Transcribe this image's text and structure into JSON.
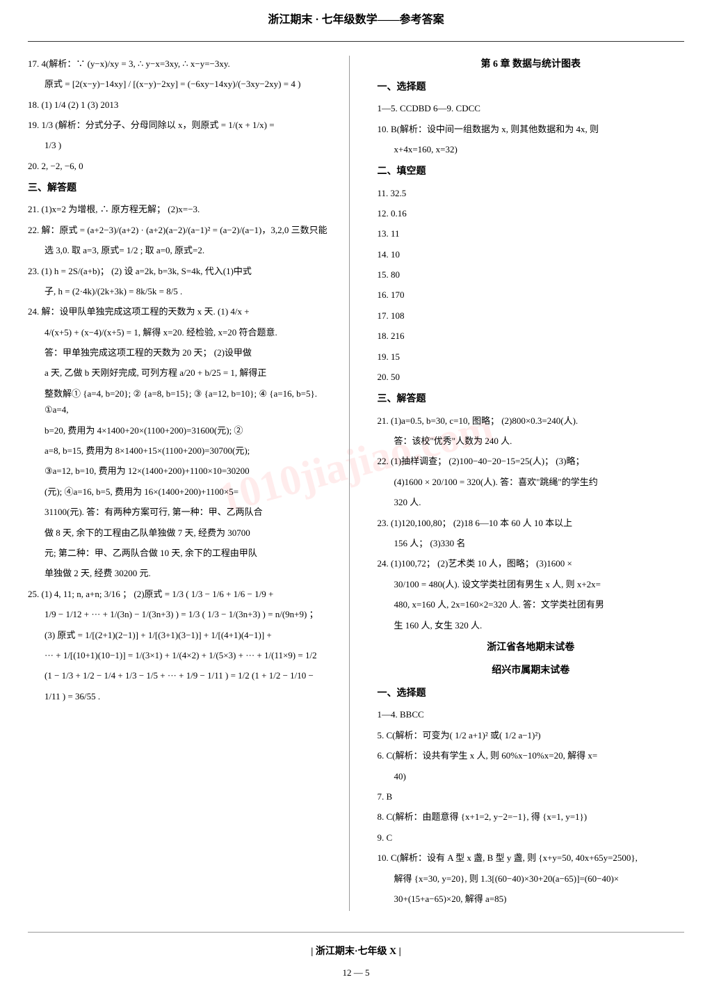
{
  "header": {
    "title": "浙江期末 · 七年级数学——参考答案"
  },
  "watermark": "1010jiajiao.com",
  "left_column": [
    {
      "type": "line",
      "text": "17.  4(解析：∵ (y−x)/xy = 3, ∴ y−x=3xy, ∴ x−y=−3xy."
    },
    {
      "type": "line",
      "indent": 1,
      "text": "原式 = [2(x−y)−14xy] / [(x−y)−2xy] = (−6xy−14xy)/(−3xy−2xy) = 4 )"
    },
    {
      "type": "line",
      "text": "18.  (1) 1/4    (2) 1    (3) 2013"
    },
    {
      "type": "line",
      "text": "19.  1/3 (解析：分式分子、分母同除以 x，则原式 = 1/(x + 1/x) ="
    },
    {
      "type": "line",
      "indent": 1,
      "text": "1/3 )"
    },
    {
      "type": "line",
      "text": "20.  2, −2, −6, 0"
    },
    {
      "type": "heading",
      "text": "三、解答题"
    },
    {
      "type": "line",
      "text": "21.  (1)x=2 为增根, ∴ 原方程无解；   (2)x=−3."
    },
    {
      "type": "line",
      "text": "22.  解：原式 = (a+2−3)/(a+2) · (a+2)(a−2)/(a−1)² = (a−2)/(a−1)，3,2,0 三数只能"
    },
    {
      "type": "line",
      "indent": 1,
      "text": "选 3,0.  取 a=3, 原式= 1/2 ; 取 a=0, 原式=2."
    },
    {
      "type": "line",
      "text": "23.  (1) h = 2S/(a+b)；  (2) 设 a=2k, b=3k, S=4k, 代入(1)中式"
    },
    {
      "type": "line",
      "indent": 1,
      "text": "子, h = (2·4k)/(2k+3k) = 8k/5k = 8/5 ."
    },
    {
      "type": "line",
      "text": "24.  解：设甲队单独完成这项工程的天数为 x 天.  (1) 4/x +"
    },
    {
      "type": "line",
      "indent": 1,
      "text": "4/(x+5) + (x−4)/(x+5) = 1, 解得 x=20. 经检验, x=20 符合题意."
    },
    {
      "type": "line",
      "indent": 1,
      "text": "答：甲单独完成这项工程的天数为 20 天；  (2)设甲做"
    },
    {
      "type": "line",
      "indent": 1,
      "text": "a 天, 乙做 b 天刚好完成, 可列方程 a/20 + b/25 = 1, 解得正"
    },
    {
      "type": "line",
      "indent": 1,
      "text": "整数解① {a=4, b=20}; ② {a=8, b=15}; ③ {a=12, b=10}; ④ {a=16, b=5}.  ①a=4,"
    },
    {
      "type": "line",
      "indent": 1,
      "text": "b=20, 费用为 4×1400+20×(1100+200)=31600(元); ②"
    },
    {
      "type": "line",
      "indent": 1,
      "text": "a=8, b=15, 费用为 8×1400+15×(1100+200)=30700(元);"
    },
    {
      "type": "line",
      "indent": 1,
      "text": "③a=12, b=10, 费用为 12×(1400+200)+1100×10=30200"
    },
    {
      "type": "line",
      "indent": 1,
      "text": "(元); ④a=16, b=5, 费用为 16×(1400+200)+1100×5="
    },
    {
      "type": "line",
      "indent": 1,
      "text": "31100(元). 答：有两种方案可行, 第一种：甲、乙两队合"
    },
    {
      "type": "line",
      "indent": 1,
      "text": "做 8 天, 余下的工程由乙队单独做 7 天, 经费为 30700"
    },
    {
      "type": "line",
      "indent": 1,
      "text": "元; 第二种：甲、乙两队合做 10 天, 余下的工程由甲队"
    },
    {
      "type": "line",
      "indent": 1,
      "text": "单独做 2 天, 经费 30200 元."
    },
    {
      "type": "line",
      "text": "25.  (1) 4, 11; n, a+n; 3/16 ；  (2)原式 = 1/3 ( 1/3 − 1/6 + 1/6 − 1/9 +"
    },
    {
      "type": "line",
      "indent": 1,
      "text": "1/9 − 1/12 + ··· + 1/(3n) − 1/(3n+3) ) = 1/3 ( 1/3 − 1/(3n+3) ) = n/(9n+9) ；"
    },
    {
      "type": "line",
      "indent": 1,
      "text": "(3) 原式 = 1/[(2+1)(2−1)] + 1/[(3+1)(3−1)] + 1/[(4+1)(4−1)] +"
    },
    {
      "type": "line",
      "indent": 1,
      "text": "··· + 1/[(10+1)(10−1)] = 1/(3×1) + 1/(4×2) + 1/(5×3) + ··· + 1/(11×9) = 1/2"
    },
    {
      "type": "line",
      "indent": 1,
      "text": "(1 − 1/3 + 1/2 − 1/4 + 1/3 − 1/5 + ··· + 1/9 − 1/11 ) = 1/2 (1 + 1/2 − 1/10 −"
    },
    {
      "type": "line",
      "indent": 1,
      "text": "1/11 ) = 36/55 ."
    }
  ],
  "right_column": [
    {
      "type": "chapter",
      "text": "第 6 章   数据与统计图表"
    },
    {
      "type": "heading",
      "text": "一、选择题"
    },
    {
      "type": "line",
      "text": "1—5.  CCDBD    6—9.  CDCC"
    },
    {
      "type": "line",
      "text": "10.  B(解析：设中间一组数据为 x, 则其他数据和为 4x, 则"
    },
    {
      "type": "line",
      "indent": 1,
      "text": "x+4x=160, x=32)"
    },
    {
      "type": "heading",
      "text": "二、填空题"
    },
    {
      "type": "line",
      "text": "11.  32.5"
    },
    {
      "type": "line",
      "text": "12.  0.16"
    },
    {
      "type": "line",
      "text": "13.  11"
    },
    {
      "type": "line",
      "text": "14.  10"
    },
    {
      "type": "line",
      "text": "15.  80"
    },
    {
      "type": "line",
      "text": "16.  170"
    },
    {
      "type": "line",
      "text": "17.  108"
    },
    {
      "type": "line",
      "text": "18.  216"
    },
    {
      "type": "line",
      "text": "19.  15"
    },
    {
      "type": "line",
      "text": "20.  50"
    },
    {
      "type": "heading",
      "text": "三、解答题"
    },
    {
      "type": "line",
      "text": "21.  (1)a=0.5, b=30, c=10, 图略；  (2)800×0.3=240(人)."
    },
    {
      "type": "line",
      "indent": 1,
      "text": "答：该校\"优秀\"人数为 240 人."
    },
    {
      "type": "line",
      "text": "22.  (1)抽样调查；  (2)100−40−20−15=25(人)；  (3)略；"
    },
    {
      "type": "line",
      "indent": 1,
      "text": "(4)1600 × 20/100 = 320(人).  答：喜欢\"跳绳\"的学生约"
    },
    {
      "type": "line",
      "indent": 1,
      "text": "320 人."
    },
    {
      "type": "line",
      "text": "23.  (1)120,100,80；  (2)18  6—10 本 60 人   10 本以上"
    },
    {
      "type": "line",
      "indent": 1,
      "text": "156 人；  (3)330 名"
    },
    {
      "type": "line",
      "text": "24.  (1)100,72；  (2)艺术类 10 人，图略；  (3)1600 ×"
    },
    {
      "type": "line",
      "indent": 1,
      "text": "30/100 = 480(人).  设文学类社团有男生 x 人, 则 x+2x="
    },
    {
      "type": "line",
      "indent": 1,
      "text": "480, x=160 人, 2x=160×2=320 人.  答：文学类社团有男"
    },
    {
      "type": "line",
      "indent": 1,
      "text": "生 160 人, 女生 320 人."
    },
    {
      "type": "subtitle",
      "text": "浙江省各地期末试卷"
    },
    {
      "type": "subtitle",
      "text": "绍兴市属期末试卷"
    },
    {
      "type": "heading",
      "text": "一、选择题"
    },
    {
      "type": "line",
      "text": "1—4.  BBCC"
    },
    {
      "type": "line",
      "text": "5.  C(解析：可变为( 1/2 a+1)² 或( 1/2 a−1)²)"
    },
    {
      "type": "line",
      "text": "6.  C(解析：设共有学生 x 人, 则 60%x−10%x=20, 解得 x="
    },
    {
      "type": "line",
      "indent": 1,
      "text": "40)"
    },
    {
      "type": "line",
      "text": "7.  B"
    },
    {
      "type": "line",
      "text": "8.  C(解析：由题意得 {x+1=2, y−2=−1}, 得 {x=1, y=1})"
    },
    {
      "type": "line",
      "text": "9.  C"
    },
    {
      "type": "line",
      "text": "10.  C(解析：设有 A 型 x 盏, B 型 y 盏, 则 {x+y=50, 40x+65y=2500},"
    },
    {
      "type": "line",
      "indent": 1,
      "text": "解得 {x=30, y=20}, 则 1.3[(60−40)×30+20(a−65)]=(60−40)×"
    },
    {
      "type": "line",
      "indent": 1,
      "text": "30+(15+a−65)×20, 解得 a=85)"
    }
  ],
  "footer": {
    "title": "| 浙江期末·七年级 X |",
    "page": "12 — 5"
  },
  "colors": {
    "text": "#000000",
    "background": "#ffffff",
    "border": "#999999",
    "watermark": "rgba(255, 100, 100, 0.12)"
  }
}
